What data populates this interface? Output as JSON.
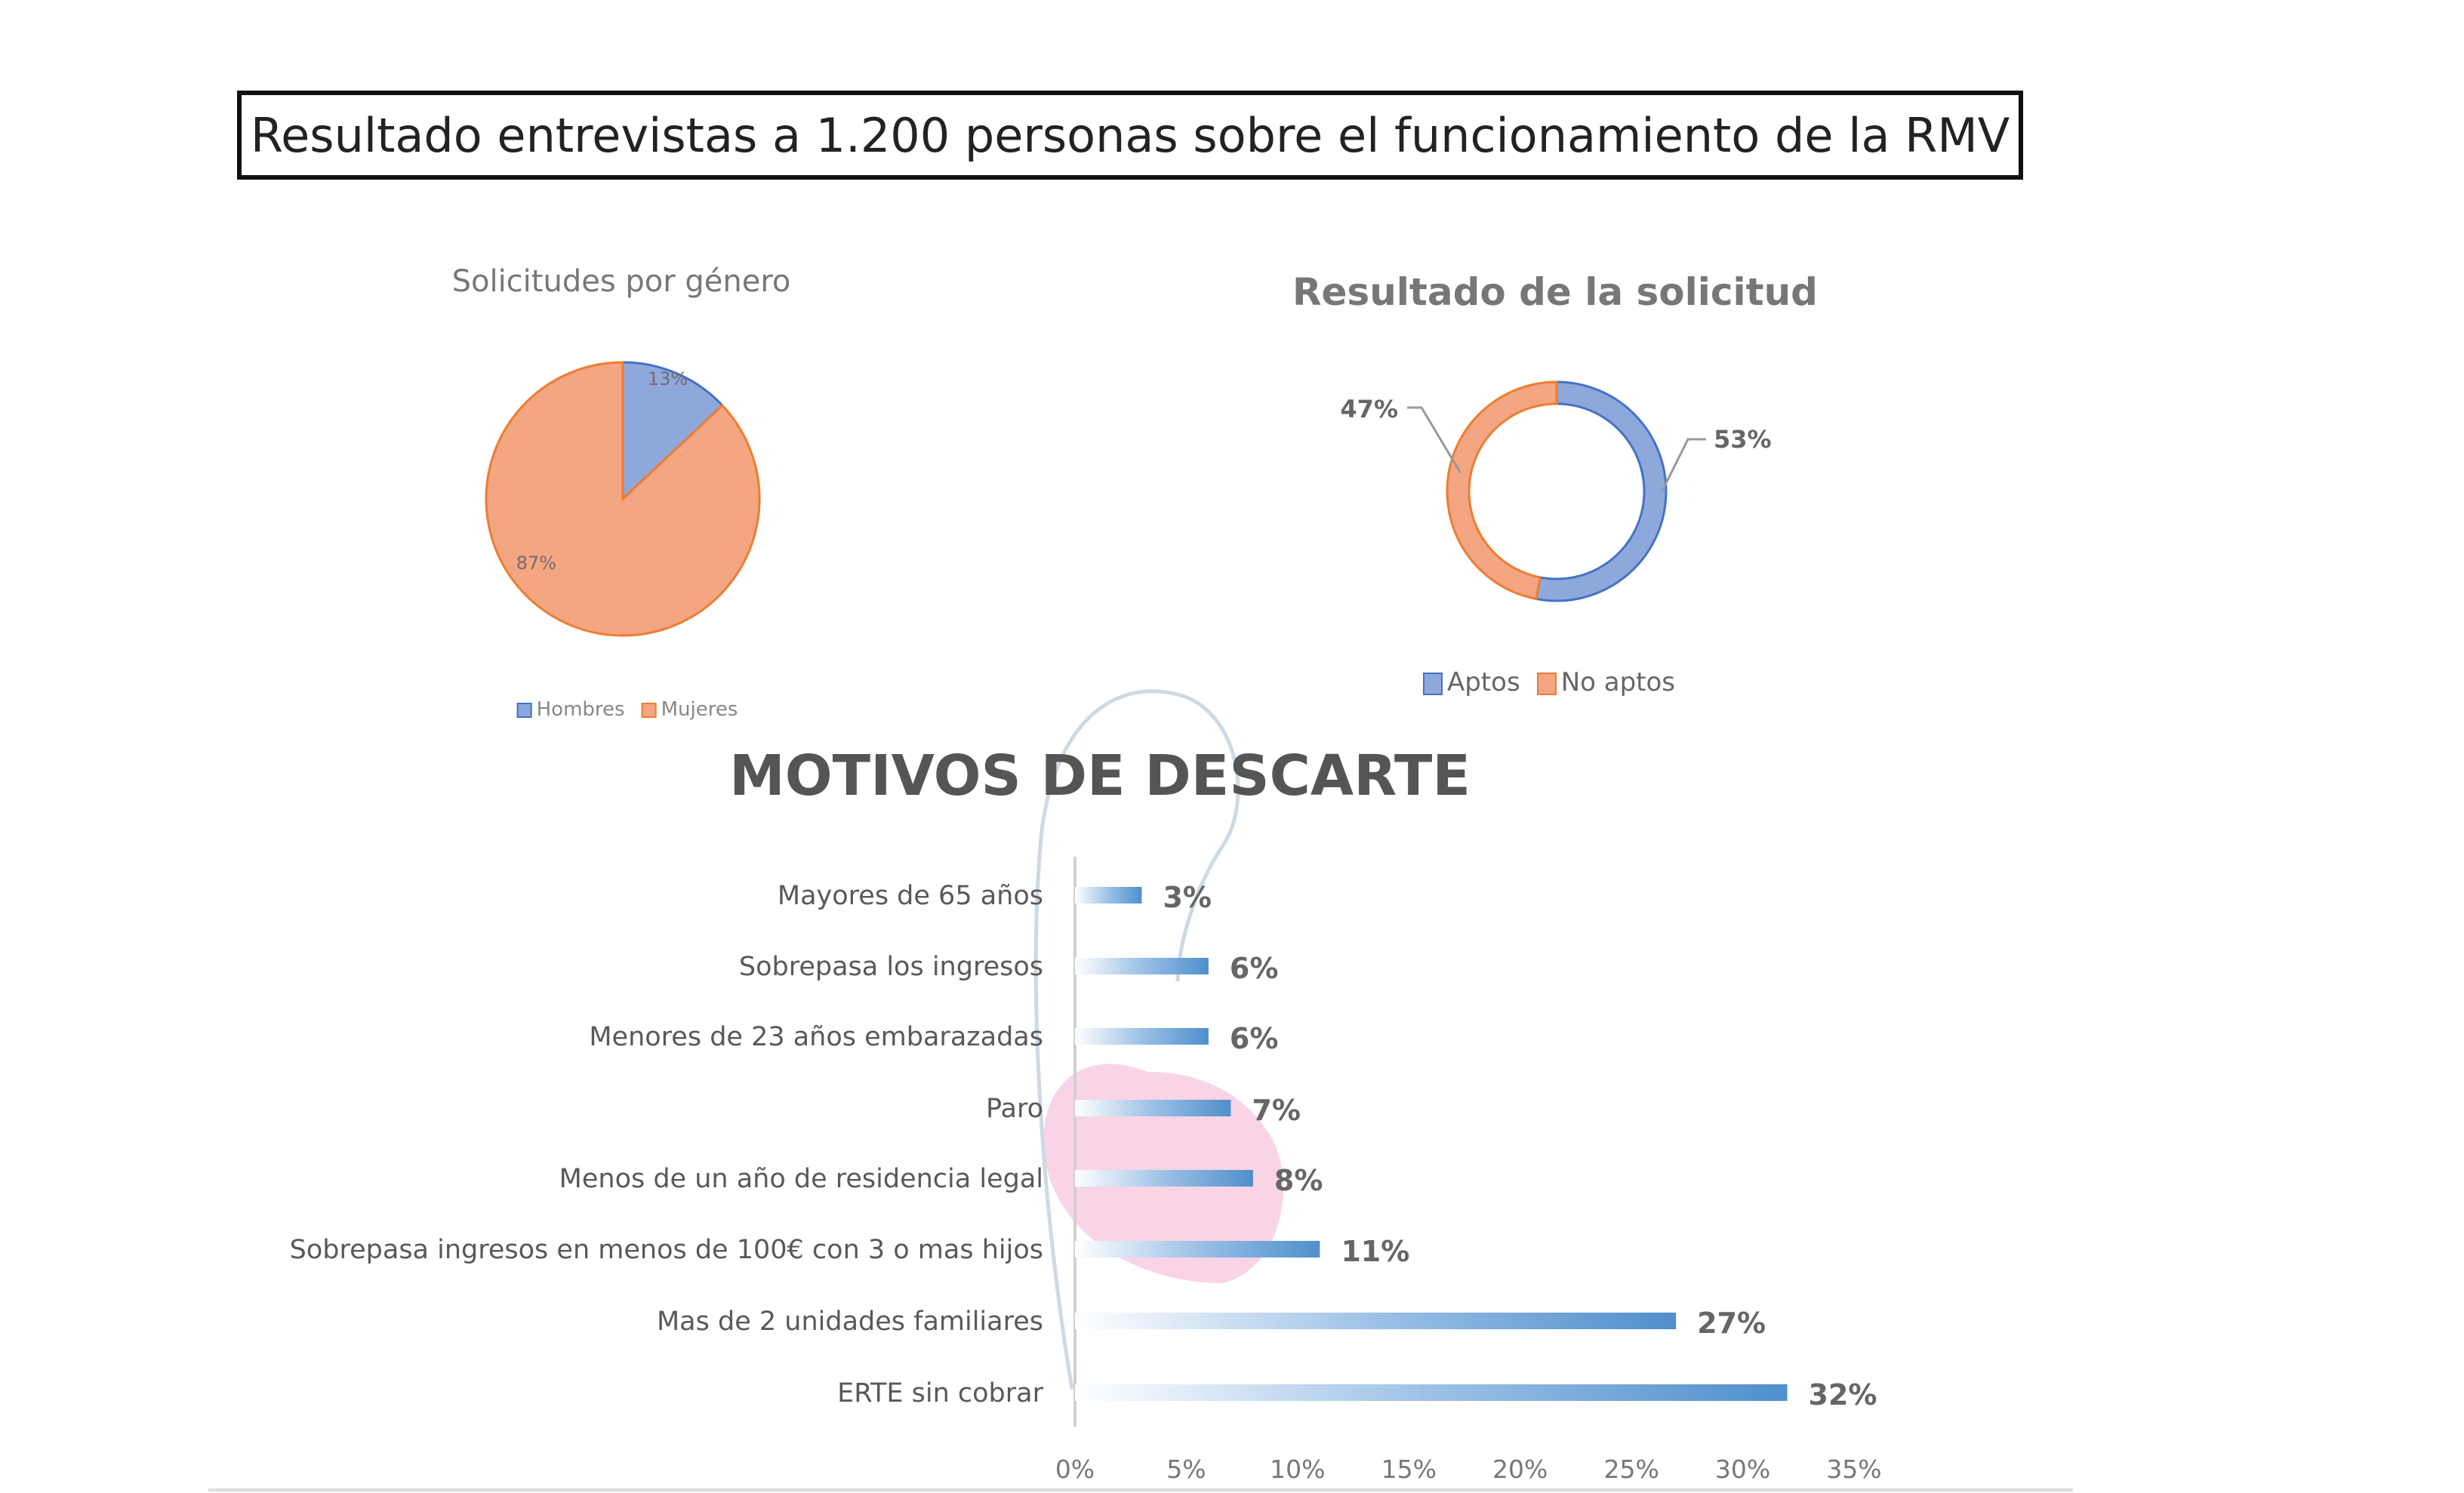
{
  "title": "Resultado entrevistas a 1.200 personas sobre el funcionamiento de la RMV",
  "colors": {
    "blue": "#8ea8dc",
    "orange": "#f4a582",
    "bar": "#5b9bd5",
    "text": "#595959"
  },
  "chart_data": [
    {
      "type": "pie",
      "title": "Solicitudes por género",
      "categories": [
        "Hombres",
        "Mujeres"
      ],
      "values": [
        13,
        87
      ],
      "labels": [
        "13%",
        "87%"
      ],
      "legend": "bottom"
    },
    {
      "type": "pie",
      "subtype": "doughnut",
      "title": "Resultado de la solicitud",
      "categories": [
        "Aptos",
        "No aptos"
      ],
      "values": [
        53,
        47
      ],
      "labels": [
        "53%",
        "47%"
      ],
      "legend": "bottom"
    },
    {
      "type": "bar",
      "orientation": "horizontal",
      "title": "MOTIVOS DE DESCARTE",
      "categories": [
        "Mayores de 65 años",
        "Sobrepasa los ingresos",
        "Menores de 23 años embarazadas",
        "Paro",
        "Menos de un año de residencia legal",
        "Sobrepasa ingresos en menos de 100€ con 3 o mas hijos",
        "Mas de 2 unidades familiares",
        "ERTE sin cobrar"
      ],
      "values": [
        3,
        6,
        6,
        7,
        8,
        11,
        27,
        32
      ],
      "labels": [
        "3%",
        "6%",
        "6%",
        "7%",
        "8%",
        "11%",
        "27%",
        "32%"
      ],
      "xlim": [
        0,
        35
      ],
      "xticks": [
        "0%",
        "5%",
        "10%",
        "15%",
        "20%",
        "25%",
        "30%",
        "35%"
      ],
      "grid": false
    }
  ]
}
